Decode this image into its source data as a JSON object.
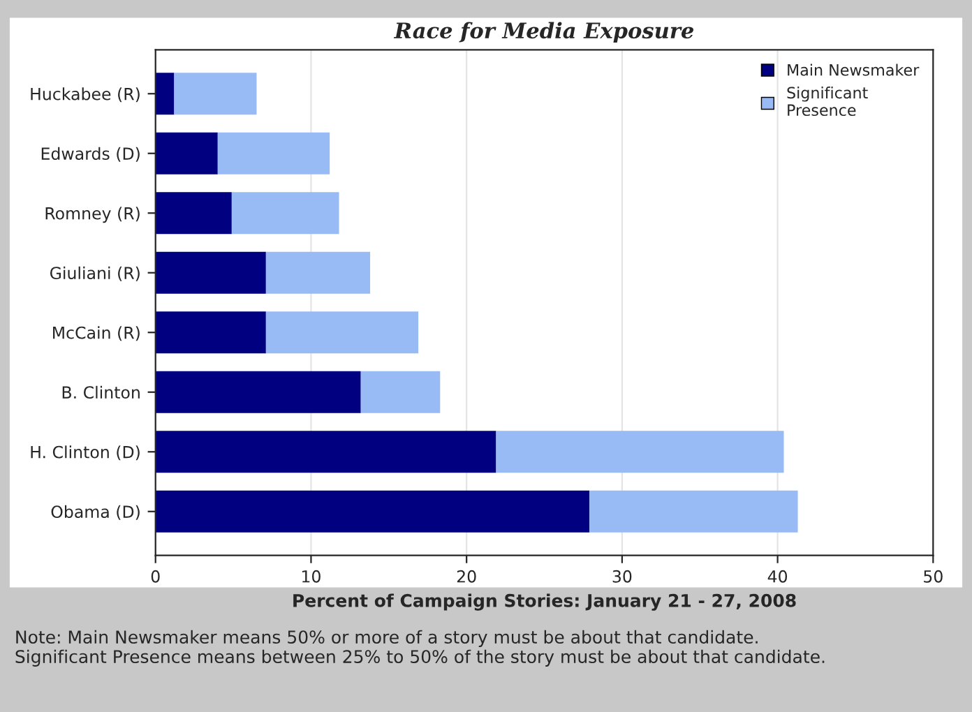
{
  "chart_data": {
    "type": "bar",
    "orientation": "horizontal",
    "stacked": true,
    "title": "Race for Media Exposure",
    "xlabel": "Percent of Campaign Stories: January 21 - 27, 2008",
    "categories": [
      "Huckabee (R)",
      "Edwards (D)",
      "Romney (R)",
      "Giuliani (R)",
      "McCain (R)",
      "B. Clinton",
      "H. Clinton (D)",
      "Obama (D)"
    ],
    "series": [
      {
        "name": "Main Newsmaker",
        "color": "#000080",
        "values": [
          1.2,
          4.0,
          4.9,
          7.1,
          7.1,
          13.2,
          21.9,
          27.9
        ]
      },
      {
        "name": "Significant\nPresence",
        "color": "#99bbf5",
        "values": [
          5.3,
          7.2,
          6.9,
          6.7,
          9.8,
          5.1,
          18.5,
          13.4
        ]
      }
    ],
    "xlim": [
      0,
      50
    ],
    "xticks": [
      0,
      10,
      20,
      30,
      40,
      50
    ],
    "grid": "x",
    "legend": "top right",
    "annotations": [
      "Note: Main Newsmaker means 50% or more of a story must be about that candidate.\nSignificant Presence means between 25% to 50% of the story must be about that candidate."
    ]
  }
}
